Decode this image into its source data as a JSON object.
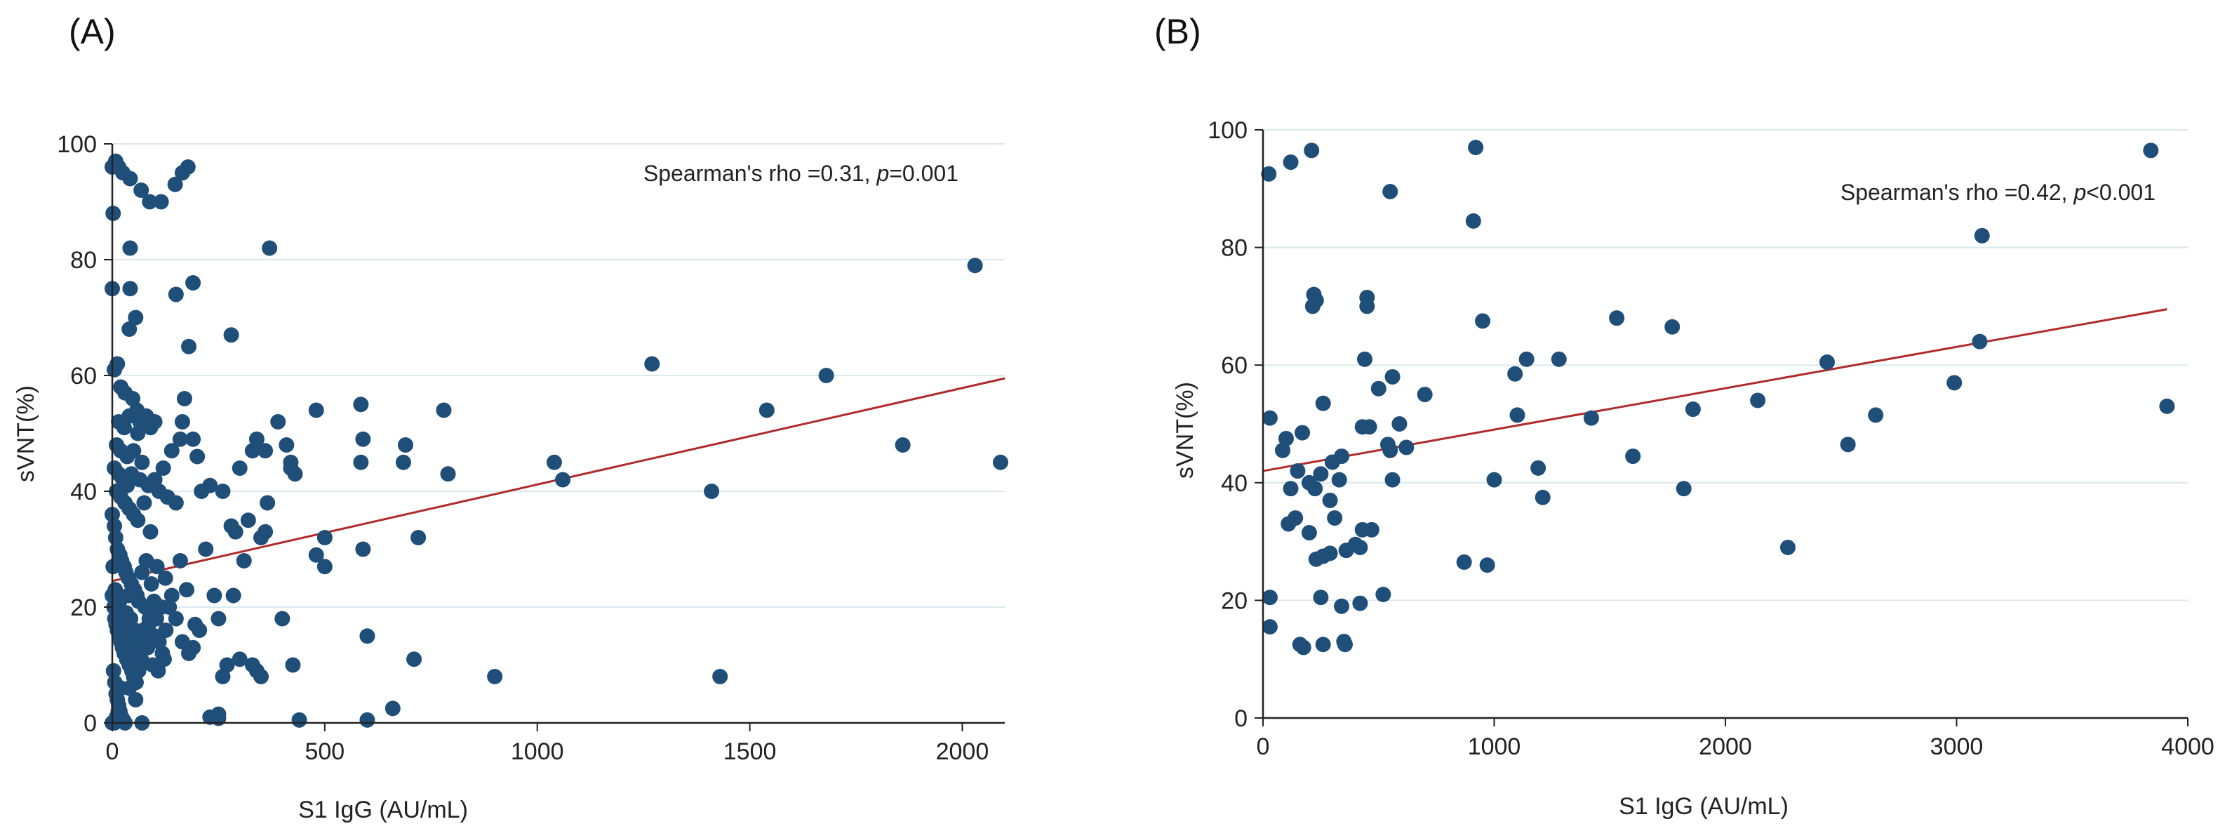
{
  "chart_data": [
    {
      "type": "scatter",
      "panel_label": "(A)",
      "xlabel": "S1 IgG (AU/mL)",
      "ylabel": "sVNT(%)",
      "xlim": [
        0,
        2100
      ],
      "ylim": [
        0,
        100
      ],
      "xticks": [
        "0",
        "500",
        "1000",
        "1500",
        "2000"
      ],
      "yticks": [
        "0",
        "20",
        "40",
        "60",
        "80",
        "100"
      ],
      "grid": "horizontal",
      "annotation": {
        "prefix": "Spearman's rho =0.31, ",
        "p_symbol": "p",
        "p_value": "=0.001"
      },
      "fit_line": {
        "x": [
          0,
          2100
        ],
        "y": [
          24.5,
          59.5
        ],
        "color": "#b02a2a"
      },
      "point_color": "#1f4e79",
      "points": [
        [
          0,
          96
        ],
        [
          8,
          97
        ],
        [
          15,
          96
        ],
        [
          25,
          95
        ],
        [
          42,
          94
        ],
        [
          2,
          88
        ],
        [
          68,
          92
        ],
        [
          88,
          90
        ],
        [
          115,
          90
        ],
        [
          148,
          93
        ],
        [
          165,
          95
        ],
        [
          178,
          96
        ],
        [
          0,
          75
        ],
        [
          42,
          82
        ],
        [
          42,
          75
        ],
        [
          55,
          70
        ],
        [
          40,
          68
        ],
        [
          150,
          74
        ],
        [
          190,
          76
        ],
        [
          180,
          65
        ],
        [
          280,
          67
        ],
        [
          370,
          82
        ],
        [
          5,
          61
        ],
        [
          12,
          62
        ],
        [
          20,
          58
        ],
        [
          30,
          57
        ],
        [
          48,
          56
        ],
        [
          58,
          54
        ],
        [
          65,
          52
        ],
        [
          80,
          53
        ],
        [
          90,
          51
        ],
        [
          40,
          53
        ],
        [
          28,
          51
        ],
        [
          15,
          52
        ],
        [
          60,
          50
        ],
        [
          100,
          52
        ],
        [
          10,
          48
        ],
        [
          20,
          47
        ],
        [
          35,
          46
        ],
        [
          50,
          47
        ],
        [
          70,
          45
        ],
        [
          45,
          43
        ],
        [
          65,
          42
        ],
        [
          85,
          41
        ],
        [
          100,
          42
        ],
        [
          120,
          44
        ],
        [
          140,
          47
        ],
        [
          160,
          49
        ],
        [
          165,
          52
        ],
        [
          170,
          56
        ],
        [
          190,
          49
        ],
        [
          200,
          46
        ],
        [
          5,
          44
        ],
        [
          15,
          43
        ],
        [
          25,
          42
        ],
        [
          35,
          41
        ],
        [
          10,
          40
        ],
        [
          20,
          39
        ],
        [
          30,
          38
        ],
        [
          40,
          37
        ],
        [
          50,
          36
        ],
        [
          60,
          35
        ],
        [
          75,
          38
        ],
        [
          90,
          33
        ],
        [
          110,
          40
        ],
        [
          130,
          39
        ],
        [
          150,
          38
        ],
        [
          0,
          36
        ],
        [
          5,
          34
        ],
        [
          8,
          32
        ],
        [
          12,
          30
        ],
        [
          18,
          29
        ],
        [
          22,
          28
        ],
        [
          28,
          27
        ],
        [
          32,
          26
        ],
        [
          38,
          25
        ],
        [
          45,
          24
        ],
        [
          52,
          23
        ],
        [
          58,
          22
        ],
        [
          62,
          21
        ],
        [
          70,
          26
        ],
        [
          80,
          28
        ],
        [
          92,
          24
        ],
        [
          105,
          27
        ],
        [
          125,
          25
        ],
        [
          140,
          22
        ],
        [
          160,
          28
        ],
        [
          175,
          23
        ],
        [
          0,
          22
        ],
        [
          4,
          20
        ],
        [
          6,
          18
        ],
        [
          9,
          17
        ],
        [
          12,
          16
        ],
        [
          16,
          15
        ],
        [
          20,
          14
        ],
        [
          24,
          13
        ],
        [
          28,
          12
        ],
        [
          34,
          11
        ],
        [
          40,
          10
        ],
        [
          46,
          9
        ],
        [
          50,
          8
        ],
        [
          56,
          7
        ],
        [
          62,
          9
        ],
        [
          68,
          11
        ],
        [
          74,
          13
        ],
        [
          80,
          15
        ],
        [
          86,
          17
        ],
        [
          92,
          19
        ],
        [
          98,
          21
        ],
        [
          104,
          18
        ],
        [
          110,
          14
        ],
        [
          118,
          12
        ],
        [
          126,
          16
        ],
        [
          134,
          20
        ],
        [
          150,
          18
        ],
        [
          165,
          14
        ],
        [
          180,
          12
        ],
        [
          190,
          13
        ],
        [
          195,
          17
        ],
        [
          205,
          16
        ],
        [
          3,
          9
        ],
        [
          6,
          7
        ],
        [
          9,
          5
        ],
        [
          12,
          4
        ],
        [
          15,
          3
        ],
        [
          18,
          2
        ],
        [
          22,
          1
        ],
        [
          26,
          0.5
        ],
        [
          30,
          0
        ],
        [
          0,
          0
        ],
        [
          5,
          0
        ],
        [
          10,
          1
        ],
        [
          14,
          2
        ],
        [
          40,
          6
        ],
        [
          55,
          4
        ],
        [
          70,
          0
        ],
        [
          20,
          6
        ],
        [
          2,
          27
        ],
        [
          7,
          23
        ],
        [
          11,
          19
        ],
        [
          17,
          21
        ],
        [
          23,
          17
        ],
        [
          27,
          15
        ],
        [
          33,
          19
        ],
        [
          37,
          22
        ],
        [
          43,
          18
        ],
        [
          47,
          14
        ],
        [
          53,
          16
        ],
        [
          57,
          12
        ],
        [
          63,
          14
        ],
        [
          67,
          10
        ],
        [
          73,
          16
        ],
        [
          77,
          20
        ],
        [
          83,
          13
        ],
        [
          87,
          18
        ],
        [
          95,
          10
        ],
        [
          100,
          15
        ],
        [
          108,
          9
        ],
        [
          116,
          20
        ],
        [
          122,
          11
        ],
        [
          210,
          40
        ],
        [
          220,
          30
        ],
        [
          240,
          22
        ],
        [
          250,
          18
        ],
        [
          260,
          8
        ],
        [
          270,
          10
        ],
        [
          285,
          22
        ],
        [
          300,
          11
        ],
        [
          310,
          28
        ],
        [
          320,
          35
        ],
        [
          330,
          10
        ],
        [
          340,
          9
        ],
        [
          350,
          8
        ],
        [
          360,
          33
        ],
        [
          230,
          41
        ],
        [
          260,
          40
        ],
        [
          280,
          34
        ],
        [
          290,
          33
        ],
        [
          300,
          44
        ],
        [
          330,
          47
        ],
        [
          340,
          49
        ],
        [
          360,
          47
        ],
        [
          365,
          38
        ],
        [
          350,
          32
        ],
        [
          390,
          52
        ],
        [
          400,
          18
        ],
        [
          410,
          48
        ],
        [
          420,
          45
        ],
        [
          430,
          43
        ],
        [
          425,
          10
        ],
        [
          420,
          44
        ],
        [
          230,
          1
        ],
        [
          250,
          0.8
        ],
        [
          250,
          1.5
        ],
        [
          440,
          0.5
        ],
        [
          600,
          0.5
        ],
        [
          660,
          2.5
        ],
        [
          480,
          54
        ],
        [
          500,
          32
        ],
        [
          480,
          29
        ],
        [
          500,
          27
        ],
        [
          585,
          55
        ],
        [
          590,
          49
        ],
        [
          585,
          45
        ],
        [
          600,
          15
        ],
        [
          590,
          30
        ],
        [
          690,
          48
        ],
        [
          685,
          45
        ],
        [
          710,
          11
        ],
        [
          720,
          32
        ],
        [
          780,
          54
        ],
        [
          790,
          43
        ],
        [
          900,
          8
        ],
        [
          1040,
          45
        ],
        [
          1060,
          42
        ],
        [
          1270,
          62
        ],
        [
          1410,
          40
        ],
        [
          1430,
          8
        ],
        [
          1540,
          54
        ],
        [
          1680,
          60
        ],
        [
          1860,
          48
        ],
        [
          2030,
          79
        ],
        [
          2090,
          45
        ]
      ]
    },
    {
      "type": "scatter",
      "panel_label": "(B)",
      "xlabel": "S1 IgG (AU/mL)",
      "ylabel": "sVNT(%)",
      "xlim": [
        0,
        4000
      ],
      "ylim": [
        0,
        100
      ],
      "xticks": [
        "0",
        "1000",
        "2000",
        "3000",
        "4000"
      ],
      "yticks": [
        "0",
        "20",
        "40",
        "60",
        "80",
        "100"
      ],
      "grid": "horizontal",
      "annotation": {
        "prefix": "Spearman's rho =0.42, ",
        "p_symbol": "p",
        "p_value": "<0.001"
      },
      "fit_line": {
        "x": [
          0,
          3910
        ],
        "y": [
          42,
          69.5
        ],
        "color": "#b02a2a"
      },
      "point_color": "#1f4e79",
      "points": [
        [
          25,
          92.5
        ],
        [
          120,
          94.5
        ],
        [
          210,
          96.5
        ],
        [
          920,
          97
        ],
        [
          3840,
          96.5
        ],
        [
          910,
          84.5
        ],
        [
          550,
          89.5
        ],
        [
          3110,
          82
        ],
        [
          220,
          72
        ],
        [
          230,
          71
        ],
        [
          215,
          70
        ],
        [
          450,
          71.5
        ],
        [
          450,
          70
        ],
        [
          950,
          67.5
        ],
        [
          1530,
          68
        ],
        [
          1770,
          66.5
        ],
        [
          3100,
          64
        ],
        [
          440,
          61
        ],
        [
          560,
          58
        ],
        [
          1090,
          58.5
        ],
        [
          1140,
          61
        ],
        [
          1280,
          61
        ],
        [
          2440,
          60.5
        ],
        [
          2990,
          57
        ],
        [
          3910,
          53
        ],
        [
          30,
          51
        ],
        [
          170,
          48.5
        ],
        [
          100,
          47.5
        ],
        [
          85,
          45.5
        ],
        [
          260,
          53.5
        ],
        [
          430,
          49.5
        ],
        [
          460,
          49.5
        ],
        [
          500,
          56
        ],
        [
          590,
          50
        ],
        [
          700,
          55
        ],
        [
          1100,
          51.5
        ],
        [
          1420,
          51
        ],
        [
          1860,
          52.5
        ],
        [
          2140,
          54
        ],
        [
          2650,
          51.5
        ],
        [
          2530,
          46.5
        ],
        [
          200,
          40
        ],
        [
          225,
          39
        ],
        [
          300,
          43.5
        ],
        [
          340,
          44.5
        ],
        [
          330,
          40.5
        ],
        [
          250,
          41.5
        ],
        [
          540,
          46.5
        ],
        [
          550,
          45.5
        ],
        [
          620,
          46
        ],
        [
          560,
          40.5
        ],
        [
          1000,
          40.5
        ],
        [
          1190,
          42.5
        ],
        [
          1210,
          37.5
        ],
        [
          1600,
          44.5
        ],
        [
          1820,
          39
        ],
        [
          120,
          39
        ],
        [
          150,
          42
        ],
        [
          290,
          37
        ],
        [
          310,
          34
        ],
        [
          200,
          31.5
        ],
        [
          230,
          27
        ],
        [
          260,
          27.5
        ],
        [
          290,
          28
        ],
        [
          360,
          28.5
        ],
        [
          400,
          29.5
        ],
        [
          430,
          32
        ],
        [
          470,
          32
        ],
        [
          420,
          29
        ],
        [
          110,
          33
        ],
        [
          140,
          34
        ],
        [
          870,
          26.5
        ],
        [
          970,
          26
        ],
        [
          2270,
          29
        ],
        [
          30,
          20.5
        ],
        [
          250,
          20.5
        ],
        [
          340,
          19
        ],
        [
          420,
          19.5
        ],
        [
          520,
          21
        ],
        [
          30,
          15.5
        ],
        [
          160,
          12.5
        ],
        [
          175,
          12
        ],
        [
          260,
          12.5
        ],
        [
          350,
          13
        ],
        [
          355,
          12.5
        ]
      ]
    }
  ]
}
